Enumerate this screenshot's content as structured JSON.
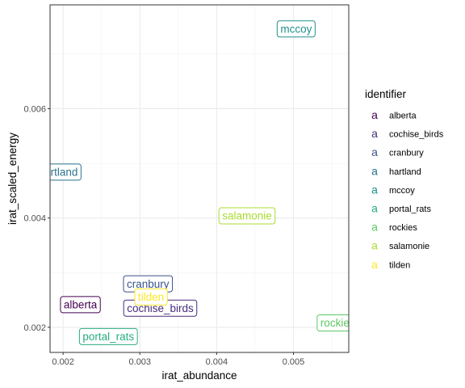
{
  "chart_data": {
    "type": "scatter",
    "xlabel": "irat_abundance",
    "ylabel": "irat_scaled_energy",
    "xlim": [
      0.00183,
      0.00572
    ],
    "ylim": [
      0.00154,
      0.0079
    ],
    "x_ticks": [
      0.002,
      0.003,
      0.004,
      0.005
    ],
    "x_tick_labels": [
      "0.002",
      "0.003",
      "0.004",
      "0.005"
    ],
    "y_ticks": [
      0.002,
      0.004,
      0.006
    ],
    "y_tick_labels": [
      "0.002",
      "0.004",
      "0.006"
    ],
    "grid": true,
    "legend": {
      "title": "identifier",
      "key_glyph": "a",
      "placement": "right"
    },
    "series": [
      {
        "name": "alberta",
        "color": "#440154",
        "x": 0.002225,
        "y": 0.002415
      },
      {
        "name": "cochise_birds",
        "color": "#472D7B",
        "x": 0.003265,
        "y": 0.00235
      },
      {
        "name": "cranbury",
        "color": "#3B528B",
        "x": 0.003105,
        "y": 0.002795
      },
      {
        "name": "hartland",
        "color": "#2C728E",
        "x": 0.001935,
        "y": 0.00484
      },
      {
        "name": "mccoy",
        "color": "#21908C",
        "x": 0.005035,
        "y": 0.00746
      },
      {
        "name": "portal_rats",
        "color": "#27AD81",
        "x": 0.00259,
        "y": 0.00183
      },
      {
        "name": "rockies",
        "color": "#5DC863",
        "x": 0.005575,
        "y": 0.00208
      },
      {
        "name": "salamonie",
        "color": "#AADC32",
        "x": 0.004395,
        "y": 0.00404
      },
      {
        "name": "tilden",
        "color": "#FDE725",
        "x": 0.003145,
        "y": 0.002555
      }
    ]
  }
}
